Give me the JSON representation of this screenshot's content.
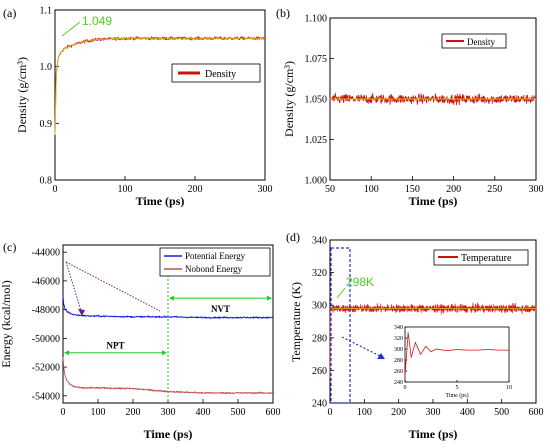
{
  "colors": {
    "density": "#cc1111",
    "density_fit": "#d4c020",
    "potential": "#1a1aee",
    "nobond": "#c0504d",
    "temperature": "#dd1111",
    "annotation": "#55cc22",
    "dashed_box": "#2233cc"
  },
  "chart_data": [
    {
      "panel": "(a)",
      "type": "line",
      "xlabel": "Time (ps)",
      "ylabel": "Density (g/cm³)",
      "xlim": [
        0,
        300
      ],
      "ylim": [
        0.8,
        1.1
      ],
      "xticks": [
        "0",
        "100",
        "200",
        "300"
      ],
      "yticks": [
        "0.8",
        "0.9",
        "1.0",
        "1.1"
      ],
      "series": [
        {
          "name": "Density",
          "x": [
            0,
            1,
            2,
            4,
            6,
            10,
            15,
            20,
            30,
            40,
            50,
            60,
            80,
            100,
            150,
            200,
            250,
            300
          ],
          "y": [
            0.88,
            0.95,
            0.99,
            1.01,
            1.02,
            1.028,
            1.033,
            1.036,
            1.04,
            1.044,
            1.046,
            1.048,
            1.049,
            1.05,
            1.05,
            1.05,
            1.05,
            1.05
          ]
        }
      ],
      "annotations": [
        {
          "text": "1.049"
        }
      ],
      "legend": "right-middle"
    },
    {
      "panel": "(b)",
      "type": "line",
      "xlabel": "Time (ps)",
      "ylabel": "Density (g/cm³)",
      "xlim": [
        50,
        300
      ],
      "ylim": [
        1.0,
        1.1
      ],
      "xticks": [
        "50",
        "100",
        "150",
        "200",
        "250",
        "300"
      ],
      "yticks": [
        "1.000",
        "1.025",
        "1.050",
        "1.075",
        "1.100"
      ],
      "series": [
        {
          "name": "Density",
          "x": [
            50,
            300
          ],
          "y": [
            1.05,
            1.05
          ],
          "noise": 0.005
        }
      ],
      "legend": "top-right"
    },
    {
      "panel": "(c)",
      "type": "line",
      "xlabel": "Time (ps)",
      "ylabel": "Energy (kcal/mol)",
      "xlim": [
        0,
        600
      ],
      "ylim": [
        -54500,
        -43500
      ],
      "xticks": [
        "0",
        "100",
        "200",
        "300",
        "400",
        "500",
        "600"
      ],
      "yticks": [
        "-54000",
        "-52000",
        "-50000",
        "-48000",
        "-46000",
        "-44000"
      ],
      "series": [
        {
          "name": "Potential Energy",
          "x": [
            0,
            2,
            5,
            10,
            20,
            30,
            50,
            80,
            100,
            200,
            300,
            400,
            500,
            600
          ],
          "y": [
            -47000,
            -47600,
            -47900,
            -48100,
            -48250,
            -48350,
            -48400,
            -48450,
            -48450,
            -48500,
            -48500,
            -48550,
            -48550,
            -48550
          ]
        },
        {
          "name": "Nobond Energy",
          "x": [
            0,
            2,
            5,
            10,
            20,
            30,
            50,
            80,
            100,
            200,
            300,
            400,
            500,
            600
          ],
          "y": [
            -51300,
            -52000,
            -52500,
            -52900,
            -53200,
            -53350,
            -53450,
            -53450,
            -53450,
            -53500,
            -53700,
            -53800,
            -53800,
            -53800
          ]
        }
      ],
      "regions": [
        {
          "label": "NPT",
          "x": [
            0,
            300
          ]
        },
        {
          "label": "NVT",
          "x": [
            300,
            600
          ]
        }
      ],
      "legend": "top-right"
    },
    {
      "panel": "(d)",
      "type": "line",
      "xlabel": "Time (ps)",
      "ylabel": "Temperature (K)",
      "xlim": [
        0,
        600
      ],
      "ylim": [
        240,
        340
      ],
      "xticks": [
        "0",
        "100",
        "200",
        "300",
        "400",
        "500",
        "600"
      ],
      "yticks": [
        "240",
        "260",
        "280",
        "300",
        "320",
        "340"
      ],
      "series": [
        {
          "name": "Temperature",
          "x": [
            0,
            600
          ],
          "y": [
            298,
            298
          ],
          "noise": 4
        }
      ],
      "annotations": [
        {
          "text": "298K"
        }
      ],
      "legend": "top-right",
      "inset": {
        "xlabel": "Time (ps)",
        "xlim": [
          0,
          10
        ],
        "ylim": [
          240,
          340
        ],
        "xticks": [
          "0",
          "5",
          "10"
        ],
        "yticks": [
          "240",
          "260",
          "280",
          "300",
          "320",
          "340"
        ],
        "x": [
          0,
          0.3,
          0.6,
          1,
          1.5,
          2,
          2.5,
          3,
          4,
          5,
          6,
          7,
          8,
          9,
          10
        ],
        "y": [
          250,
          330,
          285,
          312,
          290,
          305,
          295,
          300,
          297,
          299,
          298,
          298,
          299,
          298,
          298
        ]
      }
    }
  ]
}
